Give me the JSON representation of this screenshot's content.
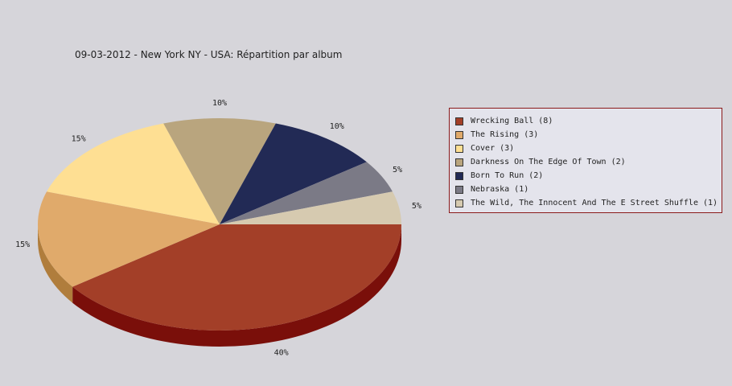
{
  "chart_data": {
    "type": "pie",
    "title": "09-03-2012 - New York NY - USA:  Répartition par album",
    "legend_position": "right",
    "slices": [
      {
        "label": "Wrecking Ball (8)",
        "value": 8,
        "percent_label": "40%",
        "color": "#a33f28",
        "side_color": "#7a0f0a"
      },
      {
        "label": "The Rising (3)",
        "value": 3,
        "percent_label": "15%",
        "color": "#e0aa6b",
        "side_color": "#b07d3c"
      },
      {
        "label": "Cover (3)",
        "value": 3,
        "percent_label": "15%",
        "color": "#fedf93",
        "side_color": "#c9aa60"
      },
      {
        "label": "Darkness On The Edge Of Town (2)",
        "value": 2,
        "percent_label": "10%",
        "color": "#b9a57e",
        "side_color": "#8a7856"
      },
      {
        "label": "Born To Run (2)",
        "value": 2,
        "percent_label": "10%",
        "color": "#222a55",
        "side_color": "#111530"
      },
      {
        "label": "Nebraska (1)",
        "value": 1,
        "percent_label": "5%",
        "color": "#7b7a86",
        "side_color": "#55545e"
      },
      {
        "label": "The Wild, The Innocent And The E Street Shuffle (1)",
        "value": 1,
        "percent_label": "5%",
        "color": "#d6cab0",
        "side_color": "#a69a80"
      }
    ]
  }
}
